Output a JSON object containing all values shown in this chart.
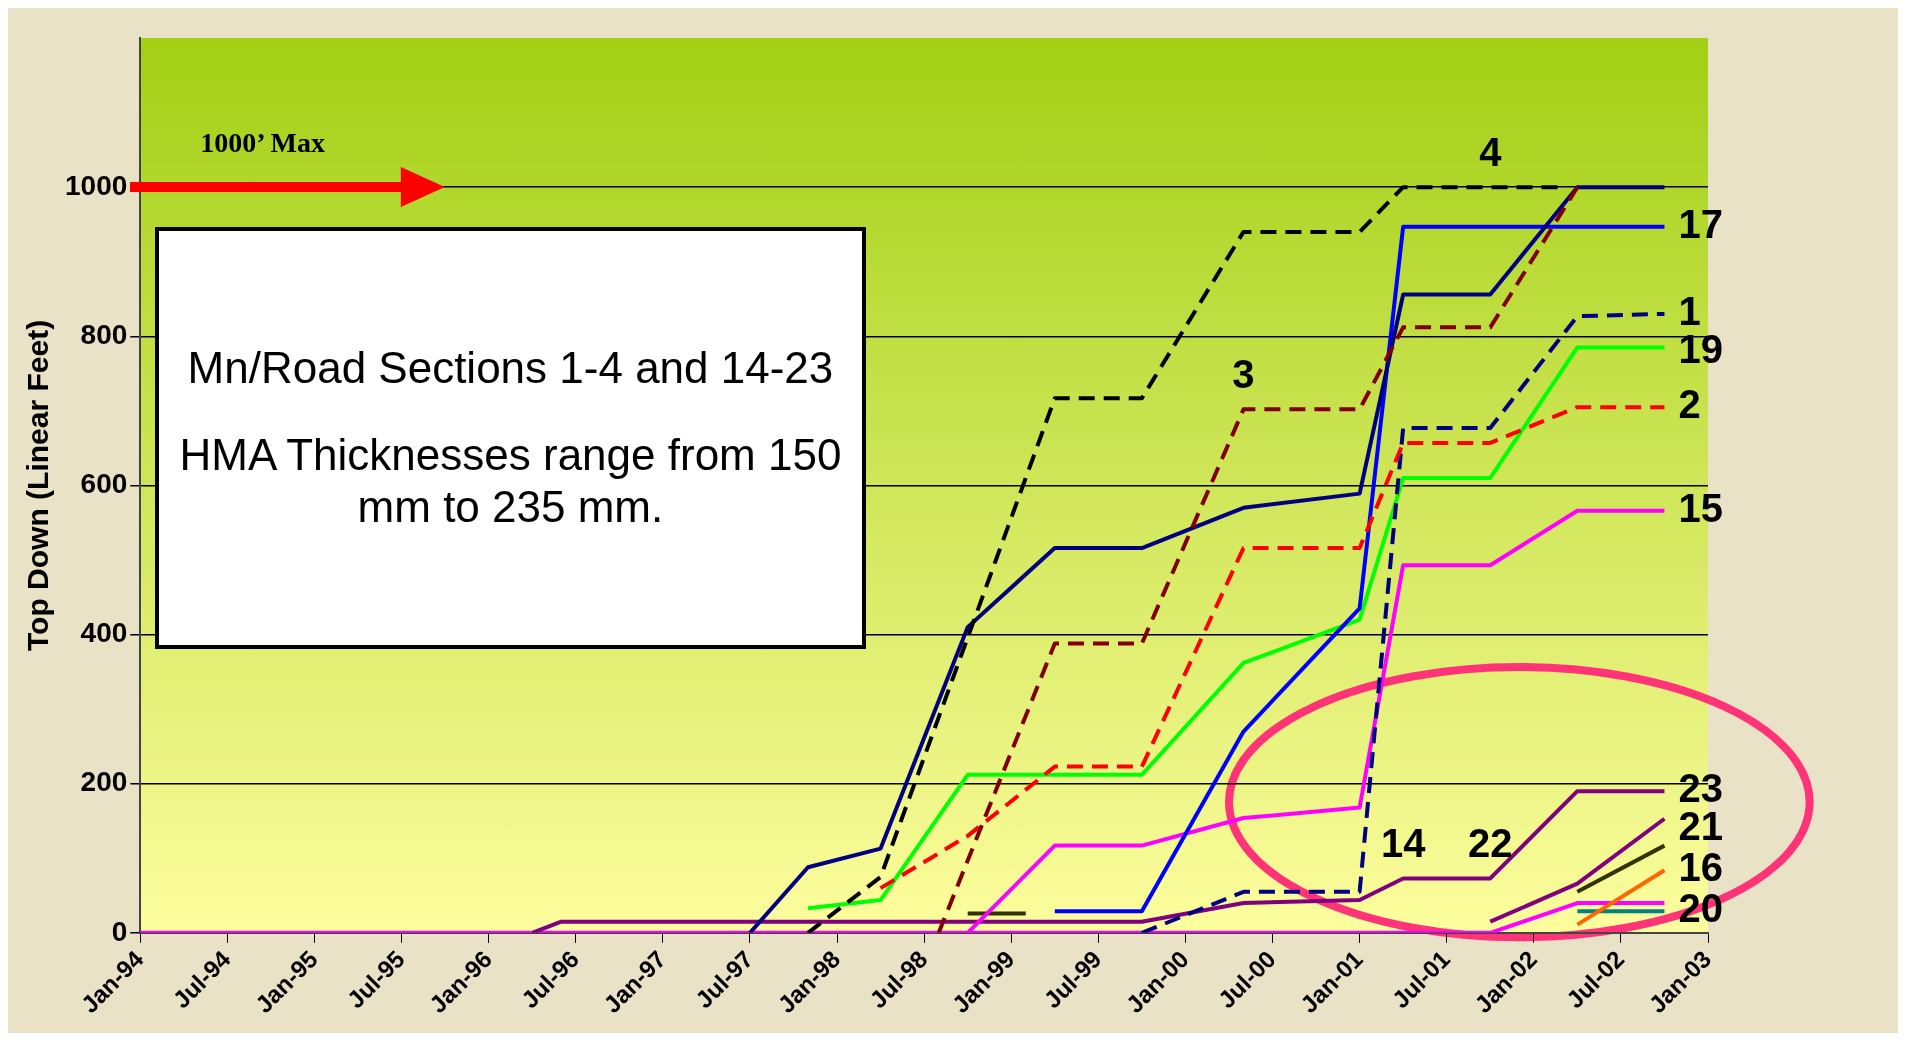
{
  "chart_data": {
    "type": "line",
    "title": "Mn/Road Sections 1-4 and 14-23",
    "subtitle": "HMA Thicknesses range from 150 mm to 235 mm.",
    "ylabel": "Top Down (Linear Feet)",
    "x": [
      "1994-01",
      "1996-04",
      "1996-06",
      "1997-07",
      "1997-11",
      "1998-04",
      "1998-10",
      "1999-04",
      "1999-10",
      "2000-05",
      "2001-01",
      "2001-04",
      "2001-10",
      "2002-04",
      "2002-10"
    ],
    "series": [
      {
        "color": "#000000",
        "line_style": "dashed",
        "x": [
          "1997-11",
          "1998-04",
          "1999-04",
          "1999-10",
          "2000-05",
          "2001-01",
          "2001-04",
          "2001-10",
          "2002-03"
        ],
        "values": [
          0,
          75,
          717,
          717,
          940,
          940,
          1000,
          1000,
          1000
        ]
      },
      {
        "color": "#800000",
        "line_style": "dashed",
        "x": [
          "1998-08",
          "1999-04",
          "1999-10",
          "2000-05",
          "2001-01",
          "2001-04",
          "2001-10",
          "2002-04"
        ],
        "values": [
          0,
          388,
          388,
          702,
          702,
          812,
          812,
          1000
        ]
      },
      {
        "name": "2",
        "color": "#ff0000",
        "line_style": "dashed",
        "values": [
          null,
          null,
          null,
          null,
          null,
          60,
          130,
          223,
          223,
          516,
          516,
          657,
          657,
          705,
          705
        ]
      },
      {
        "name": "1",
        "color": "#000080",
        "line_style": "dashed",
        "values": [
          null,
          null,
          null,
          null,
          null,
          null,
          null,
          null,
          0,
          55,
          55,
          677,
          677,
          827,
          830
        ]
      },
      {
        "color": "#000080",
        "line_style": "solid",
        "values": [
          null,
          null,
          null,
          0,
          88,
          113,
          410,
          516,
          516,
          570,
          589,
          856,
          856,
          1000,
          1000
        ]
      },
      {
        "name": "17",
        "color": "#0000ff",
        "line_style": "solid",
        "values": [
          null,
          null,
          null,
          null,
          null,
          null,
          null,
          29,
          29,
          270,
          435,
          947,
          947,
          947,
          947
        ]
      },
      {
        "name": "19",
        "color": "#00ff00",
        "line_style": "solid",
        "values": [
          null,
          null,
          null,
          null,
          33,
          44,
          212,
          212,
          212,
          362,
          420,
          610,
          610,
          785,
          785
        ]
      },
      {
        "name": "15",
        "color": "#ff00ff",
        "line_style": "solid",
        "values": [
          null,
          null,
          null,
          null,
          null,
          null,
          0,
          117,
          117,
          154,
          168,
          493,
          493,
          566,
          566
        ]
      },
      {
        "name": "23",
        "color": "#800080",
        "line_style": "solid",
        "values": [
          null,
          0,
          15,
          15,
          15,
          15,
          15,
          15,
          15,
          40,
          44,
          73,
          73,
          190,
          190
        ]
      },
      {
        "name": "21",
        "color": "#800080",
        "line_style": "solid",
        "values": [
          null,
          null,
          null,
          null,
          null,
          null,
          null,
          null,
          null,
          null,
          null,
          null,
          15,
          66,
          153
        ]
      },
      {
        "color": "#333300",
        "line_style": "solid",
        "x": [
          "1998-10",
          "1999-02",
          "2001-10",
          "2002-04",
          "2002-10"
        ],
        "values": [
          26,
          26,
          null,
          55,
          117
        ]
      },
      {
        "name": "16",
        "color": "#ff6600",
        "line_style": "solid",
        "values": [
          null,
          null,
          null,
          null,
          null,
          null,
          null,
          null,
          null,
          null,
          null,
          null,
          null,
          11,
          84
        ]
      },
      {
        "color": "#ff00ff",
        "line_style": "solid",
        "values": [
          0,
          0,
          0,
          0,
          0,
          0,
          0,
          0,
          0,
          0,
          0,
          0,
          0,
          40,
          40
        ]
      },
      {
        "name": "20",
        "color": "#008080",
        "line_style": "solid",
        "values": [
          null,
          null,
          null,
          null,
          null,
          null,
          null,
          null,
          null,
          null,
          null,
          null,
          null,
          29,
          29
        ]
      }
    ],
    "annotations": [
      "1000’ Max",
      {
        "text": "3",
        "x": "2000-05",
        "y": 702
      },
      {
        "text": "4",
        "x": "2001-10",
        "y": 1000
      },
      {
        "text": "14",
        "x": "2001-04",
        "y": 73
      },
      {
        "text": "22",
        "x": "2001-10",
        "y": 73
      }
    ],
    "xlim": [
      "1994-01",
      "2003-01"
    ],
    "xticks": [
      {
        "value": "1994-01",
        "label": "Jan-94"
      },
      {
        "value": "1994-07",
        "label": "Jul-94"
      },
      {
        "value": "1995-01",
        "label": "Jan-95"
      },
      {
        "value": "1995-07",
        "label": "Jul-95"
      },
      {
        "value": "1996-01",
        "label": "Jan-96"
      },
      {
        "value": "1996-07",
        "label": "Jul-96"
      },
      {
        "value": "1997-01",
        "label": "Jan-97"
      },
      {
        "value": "1997-07",
        "label": "Jul-97"
      },
      {
        "value": "1998-01",
        "label": "Jan-98"
      },
      {
        "value": "1998-07",
        "label": "Jul-98"
      },
      {
        "value": "1999-01",
        "label": "Jan-99"
      },
      {
        "value": "1999-07",
        "label": "Jul-99"
      },
      {
        "value": "2000-01",
        "label": "Jan-00"
      },
      {
        "value": "2000-07",
        "label": "Jul-00"
      },
      {
        "value": "2001-01",
        "label": "Jan-01"
      },
      {
        "value": "2001-07",
        "label": "Jul-01"
      },
      {
        "value": "2002-01",
        "label": "Jan-02"
      },
      {
        "value": "2002-07",
        "label": "Jul-02"
      },
      {
        "value": "2003-01",
        "label": "Jan-03"
      }
    ],
    "ylim": [
      0,
      1200
    ],
    "yticks": [
      0,
      200,
      400,
      600,
      800,
      1000
    ],
    "grid": "y",
    "legend": false,
    "marker": "none"
  }
}
